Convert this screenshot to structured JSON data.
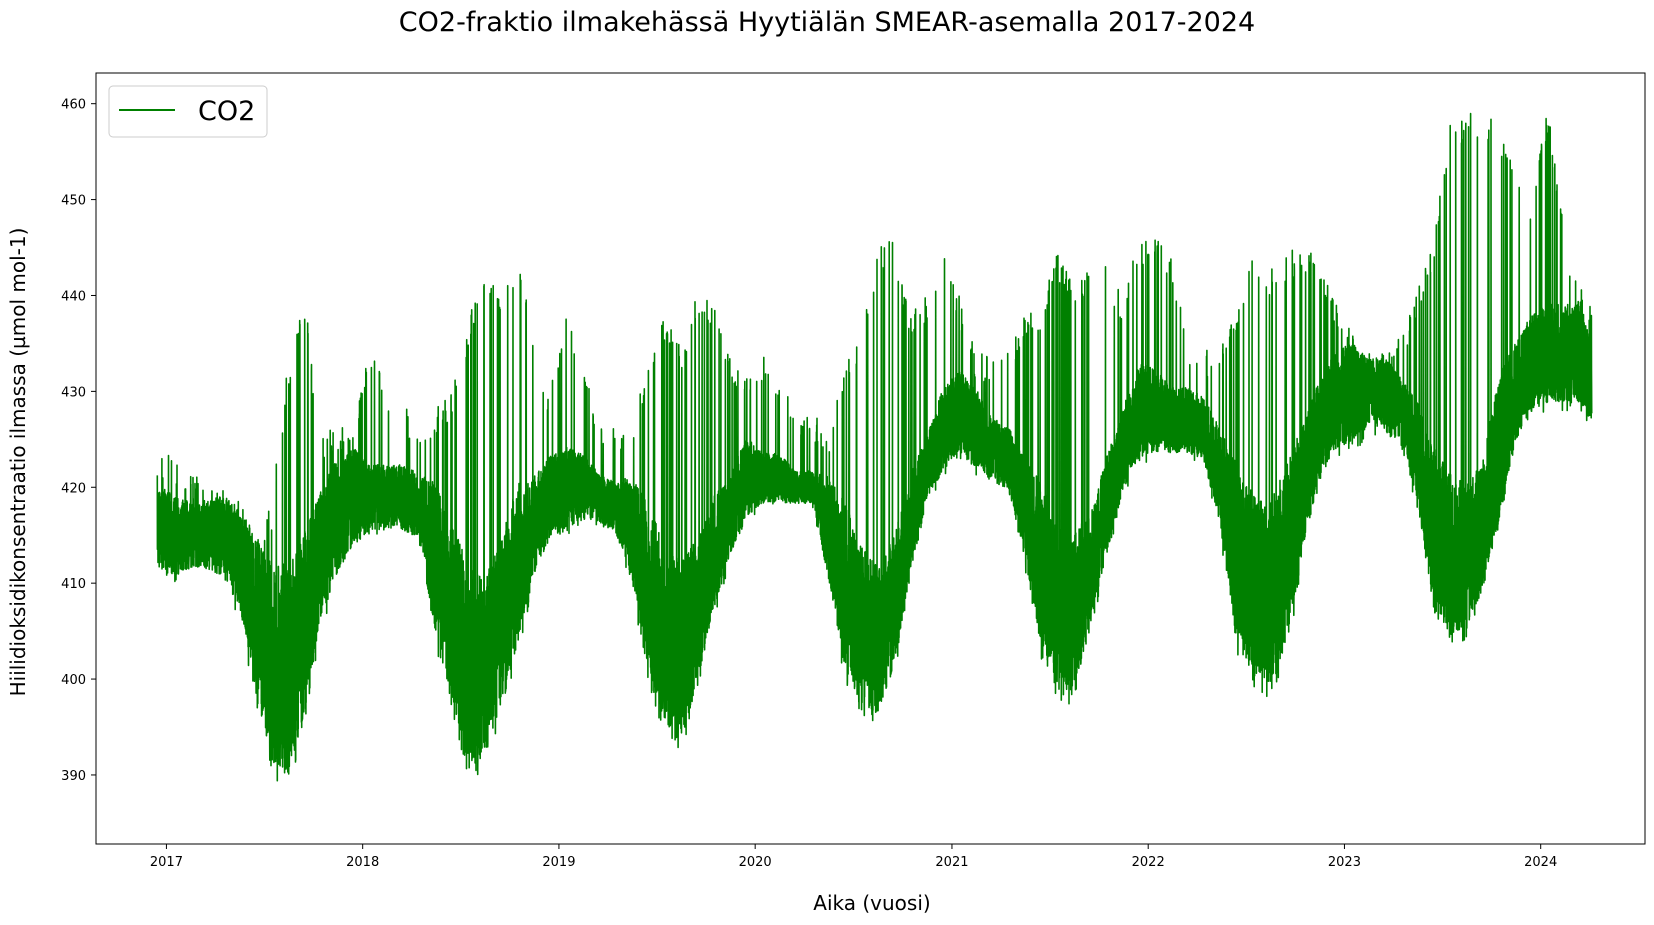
{
  "chart_data": {
    "type": "line",
    "title": "CO2-fraktio ilmakehässä Hyytiälän SMEAR-asemalla 2017-2024",
    "xlabel": "Aika (vuosi)",
    "ylabel": "Hiilidioksidikonsentraatio ilmassa (µmol mol-1)",
    "x_ticks": [
      "2017",
      "2018",
      "2019",
      "2020",
      "2021",
      "2022",
      "2023",
      "2024"
    ],
    "y_ticks": [
      390,
      400,
      410,
      420,
      430,
      440,
      450,
      460
    ],
    "xlim": [
      "2016-08-23",
      "2024-07-13"
    ],
    "ylim": [
      382.8,
      463.2
    ],
    "legend_position": "upper-left",
    "series": [
      {
        "name": "CO2",
        "color": "#008000",
        "envelope_note_x": "date",
        "x": [
          "2016-12-15",
          "2017-01-15",
          "2017-02-15",
          "2017-03-15",
          "2017-04-15",
          "2017-05-15",
          "2017-06-15",
          "2017-07-15",
          "2017-08-15",
          "2017-09-15",
          "2017-10-15",
          "2017-11-15",
          "2017-12-15",
          "2018-01-15",
          "2018-02-15",
          "2018-03-15",
          "2018-04-15",
          "2018-05-15",
          "2018-06-15",
          "2018-07-15",
          "2018-08-15",
          "2018-09-15",
          "2018-10-15",
          "2018-11-15",
          "2018-12-15",
          "2019-01-15",
          "2019-02-15",
          "2019-03-15",
          "2019-04-15",
          "2019-05-15",
          "2019-06-15",
          "2019-07-15",
          "2019-08-15",
          "2019-09-15",
          "2019-10-15",
          "2019-11-15",
          "2019-12-15",
          "2020-01-15",
          "2020-02-15",
          "2020-03-15",
          "2020-04-15",
          "2020-05-15",
          "2020-06-15",
          "2020-07-15",
          "2020-08-15",
          "2020-09-15",
          "2020-10-15",
          "2020-11-15",
          "2020-12-15",
          "2021-01-15",
          "2021-02-15",
          "2021-03-15",
          "2021-04-15",
          "2021-05-15",
          "2021-06-15",
          "2021-07-15",
          "2021-08-15",
          "2021-09-15",
          "2021-10-15",
          "2021-11-15",
          "2021-12-15",
          "2022-01-15",
          "2022-02-15",
          "2022-03-15",
          "2022-04-15",
          "2022-05-15",
          "2022-06-15",
          "2022-07-15",
          "2022-08-15",
          "2022-09-15",
          "2022-10-15",
          "2022-11-15",
          "2022-12-15",
          "2023-01-15",
          "2023-02-15",
          "2023-03-15",
          "2023-04-15",
          "2023-05-15",
          "2023-06-15",
          "2023-07-15",
          "2023-08-15",
          "2023-09-15",
          "2023-10-15",
          "2023-11-15",
          "2023-12-15",
          "2024-01-15",
          "2024-02-15",
          "2024-03-15",
          "2024-04-05"
        ],
        "low": [
          411,
          410,
          411,
          411,
          410,
          406,
          398,
          390,
          388,
          395,
          405,
          410,
          413,
          415,
          415,
          415,
          414,
          404,
          396,
          390,
          390,
          396,
          402,
          410,
          414,
          415,
          416,
          416,
          415,
          410,
          400,
          394,
          392,
          398,
          406,
          412,
          416,
          418,
          418,
          418,
          418,
          410,
          400,
          396,
          395,
          400,
          410,
          418,
          421,
          423,
          421,
          420,
          419,
          412,
          402,
          398,
          397,
          404,
          412,
          419,
          422,
          423,
          423,
          423,
          422,
          415,
          402,
          399,
          398,
          402,
          412,
          420,
          423,
          424,
          424,
          425,
          424,
          418,
          406,
          403,
          404,
          408,
          415,
          424,
          427,
          428,
          428,
          428,
          426
        ],
        "high": [
          424,
          423,
          422,
          420,
          420,
          419,
          416,
          418,
          433,
          440,
          426,
          426,
          428,
          434,
          431,
          430,
          425,
          428,
          430,
          437,
          444,
          440,
          444,
          436,
          430,
          440,
          432,
          428,
          426,
          426,
          433,
          438,
          435,
          440,
          440,
          434,
          432,
          434,
          432,
          428,
          428,
          426,
          432,
          437,
          445,
          446,
          438,
          440,
          445,
          440,
          434,
          434,
          434,
          438,
          439,
          445,
          441,
          444,
          443,
          440,
          446,
          446,
          444,
          436,
          434,
          436,
          438,
          444,
          443,
          444,
          446,
          443,
          440,
          436,
          434,
          434,
          436,
          440,
          446,
          458,
          459,
          459,
          458,
          455,
          450,
          460,
          446,
          441,
          439
        ],
        "typical": [
          416,
          415,
          415,
          415,
          415,
          413,
          407,
          402,
          401,
          406,
          413,
          417,
          419,
          419,
          419,
          419,
          418,
          413,
          407,
          402,
          401,
          406,
          412,
          416,
          419,
          420,
          420,
          419,
          418,
          416,
          410,
          405,
          403,
          407,
          413,
          417,
          421,
          421,
          421,
          420,
          420,
          416,
          410,
          406,
          404,
          408,
          416,
          422,
          426,
          428,
          426,
          424,
          423,
          418,
          412,
          408,
          407,
          411,
          418,
          424,
          428,
          428,
          427,
          427,
          426,
          421,
          413,
          410,
          409,
          413,
          420,
          426,
          429,
          430,
          430,
          430,
          428,
          424,
          416,
          413,
          413,
          416,
          424,
          430,
          433,
          434,
          434,
          434,
          431
        ]
      }
    ]
  }
}
